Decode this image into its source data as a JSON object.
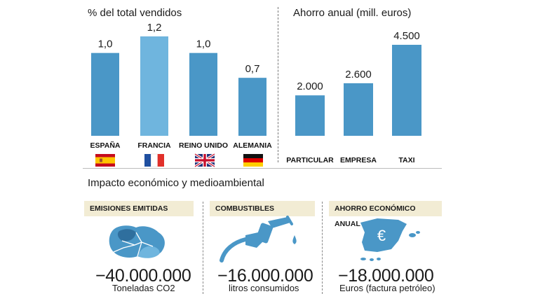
{
  "chart_data": [
    {
      "type": "bar",
      "title": "% del total vendidos",
      "categories": [
        "ESPAÑA",
        "FRANCIA",
        "REINO UNIDO",
        "ALEMANIA"
      ],
      "values": [
        1.0,
        1.2,
        1.0,
        0.7
      ],
      "value_labels": [
        "1,0",
        "1,2",
        "1,0",
        "0,7"
      ],
      "colors": [
        "#4a97c7",
        "#6fb5de",
        "#4a97c7",
        "#4a97c7"
      ],
      "ylim": [
        0,
        1.2
      ]
    },
    {
      "type": "bar",
      "title": "Ahorro anual (mill. euros)",
      "categories": [
        "PARTICULAR",
        "EMPRESA",
        "TAXI"
      ],
      "values": [
        2000,
        2600,
        4500
      ],
      "value_labels": [
        "2.000",
        "2.600",
        "4.500"
      ],
      "colors": [
        "#4a97c7",
        "#4a97c7",
        "#4a97c7"
      ],
      "ylim": [
        0,
        4500
      ]
    }
  ],
  "section": {
    "title": "Impacto económico y medioambiental"
  },
  "cards": [
    {
      "header": "EMISIONES EMITIDAS",
      "value": "−40.000.000",
      "caption": "Toneladas CO2",
      "icon": "islands-map-icon"
    },
    {
      "header": "COMBUSTIBLES",
      "value": "−16.000.000",
      "caption": "litros consumidos",
      "icon": "fuel-nozzle-icon"
    },
    {
      "header": "AHORRO ECONÓMICO ANUAL",
      "value": "−18.000.000",
      "caption": "Euros (factura petróleo)",
      "icon": "spain-map-icon",
      "symbol": "€"
    }
  ],
  "colors": {
    "bar": "#4a97c7",
    "bar_highlight": "#6fb5de",
    "card_header_bg": "#f2ecd4",
    "map_dark": "#3f86b8",
    "map_light": "#6fb5de"
  }
}
